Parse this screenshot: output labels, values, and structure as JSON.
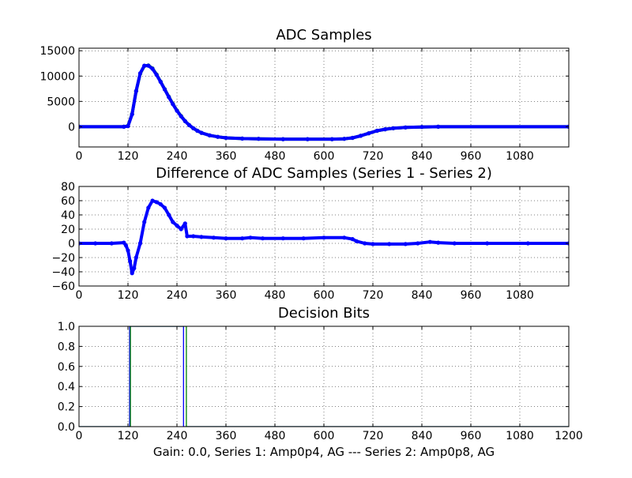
{
  "chart_data": [
    {
      "type": "line",
      "title": "ADC Samples",
      "xlabel": "",
      "ylabel": "",
      "xlim": [
        0,
        1200
      ],
      "ylim": [
        -4000,
        15500
      ],
      "xticks": [
        0,
        120,
        240,
        360,
        480,
        600,
        720,
        840,
        960,
        1080
      ],
      "yticks": [
        0,
        5000,
        10000,
        15000
      ],
      "grid": true,
      "series": [
        {
          "color": "#008000",
          "marker": "dot",
          "points": [
            [
              0,
              0
            ],
            [
              110,
              0
            ],
            [
              120,
              150
            ],
            [
              130,
              2500
            ],
            [
              140,
              7000
            ],
            [
              150,
              10500
            ],
            [
              160,
              12000
            ],
            [
              170,
              12100
            ],
            [
              180,
              11500
            ],
            [
              190,
              10300
            ],
            [
              200,
              8900
            ],
            [
              210,
              7400
            ],
            [
              220,
              5900
            ],
            [
              230,
              4500
            ],
            [
              240,
              3200
            ],
            [
              250,
              2100
            ],
            [
              260,
              1100
            ],
            [
              270,
              300
            ],
            [
              280,
              -300
            ],
            [
              290,
              -800
            ],
            [
              300,
              -1200
            ],
            [
              320,
              -1700
            ],
            [
              340,
              -2000
            ],
            [
              360,
              -2200
            ],
            [
              400,
              -2350
            ],
            [
              440,
              -2400
            ],
            [
              500,
              -2450
            ],
            [
              560,
              -2450
            ],
            [
              620,
              -2450
            ],
            [
              650,
              -2400
            ],
            [
              670,
              -2200
            ],
            [
              690,
              -1800
            ],
            [
              710,
              -1300
            ],
            [
              730,
              -800
            ],
            [
              750,
              -500
            ],
            [
              770,
              -300
            ],
            [
              800,
              -150
            ],
            [
              840,
              -50
            ],
            [
              880,
              0
            ],
            [
              1200,
              0
            ]
          ]
        },
        {
          "color": "#0000ff",
          "marker": "dot",
          "points": [
            [
              0,
              0
            ],
            [
              110,
              0
            ],
            [
              120,
              100
            ],
            [
              130,
              2450
            ],
            [
              140,
              7050
            ],
            [
              150,
              10550
            ],
            [
              160,
              12050
            ],
            [
              170,
              12050
            ],
            [
              180,
              11450
            ],
            [
              190,
              10250
            ],
            [
              200,
              8850
            ],
            [
              210,
              7350
            ],
            [
              220,
              5850
            ],
            [
              230,
              4450
            ],
            [
              240,
              3150
            ],
            [
              250,
              2050
            ],
            [
              260,
              1100
            ],
            [
              270,
              300
            ],
            [
              280,
              -300
            ],
            [
              290,
              -800
            ],
            [
              300,
              -1200
            ],
            [
              320,
              -1700
            ],
            [
              340,
              -2000
            ],
            [
              360,
              -2200
            ],
            [
              400,
              -2350
            ],
            [
              440,
              -2400
            ],
            [
              500,
              -2450
            ],
            [
              560,
              -2450
            ],
            [
              620,
              -2450
            ],
            [
              650,
              -2400
            ],
            [
              670,
              -2200
            ],
            [
              690,
              -1800
            ],
            [
              710,
              -1300
            ],
            [
              730,
              -800
            ],
            [
              750,
              -500
            ],
            [
              770,
              -300
            ],
            [
              800,
              -150
            ],
            [
              840,
              -50
            ],
            [
              880,
              0
            ],
            [
              1200,
              0
            ]
          ]
        }
      ]
    },
    {
      "type": "line",
      "title": "Difference of ADC Samples (Series 1 - Series 2)",
      "xlabel": "",
      "ylabel": "",
      "xlim": [
        0,
        1200
      ],
      "ylim": [
        -60,
        80
      ],
      "xticks": [
        0,
        120,
        240,
        360,
        480,
        600,
        720,
        840,
        960,
        1080
      ],
      "yticks": [
        -60,
        -40,
        -20,
        0,
        20,
        40,
        60,
        80
      ],
      "grid": true,
      "series": [
        {
          "color": "#0000ff",
          "marker": "dot",
          "points": [
            [
              0,
              0
            ],
            [
              40,
              0
            ],
            [
              80,
              0
            ],
            [
              110,
              1
            ],
            [
              115,
              -3
            ],
            [
              120,
              -10
            ],
            [
              125,
              -25
            ],
            [
              130,
              -42
            ],
            [
              135,
              -35
            ],
            [
              140,
              -20
            ],
            [
              150,
              0
            ],
            [
              160,
              30
            ],
            [
              170,
              50
            ],
            [
              180,
              60
            ],
            [
              190,
              58
            ],
            [
              200,
              55
            ],
            [
              210,
              50
            ],
            [
              220,
              40
            ],
            [
              230,
              30
            ],
            [
              240,
              25
            ],
            [
              250,
              20
            ],
            [
              260,
              28
            ],
            [
              265,
              10
            ],
            [
              280,
              10
            ],
            [
              300,
              9
            ],
            [
              330,
              8
            ],
            [
              360,
              7
            ],
            [
              400,
              7
            ],
            [
              420,
              8
            ],
            [
              450,
              7
            ],
            [
              500,
              7
            ],
            [
              550,
              7
            ],
            [
              600,
              8
            ],
            [
              650,
              8
            ],
            [
              670,
              6
            ],
            [
              680,
              3
            ],
            [
              700,
              0
            ],
            [
              720,
              -1
            ],
            [
              760,
              -1
            ],
            [
              800,
              -1
            ],
            [
              830,
              0
            ],
            [
              860,
              2
            ],
            [
              880,
              1
            ],
            [
              920,
              0
            ],
            [
              1000,
              0
            ],
            [
              1100,
              0
            ],
            [
              1200,
              0
            ]
          ]
        }
      ]
    },
    {
      "type": "line",
      "title": "Decision Bits",
      "xlabel": "Gain: 0.0, Series 1: Amp0p4, AG --- Series 2: Amp0p8, AG",
      "ylabel": "",
      "xlim": [
        0,
        1200
      ],
      "ylim": [
        0,
        1
      ],
      "xticks": [
        0,
        120,
        240,
        360,
        480,
        600,
        720,
        840,
        960,
        1080,
        1200
      ],
      "xtick_labels": [
        "0",
        "120",
        "240",
        "360",
        "480",
        "600",
        "720",
        "840",
        "960",
        "1080",
        "1200"
      ],
      "yticks": [
        0.0,
        0.2,
        0.4,
        0.6,
        0.8,
        1.0
      ],
      "ytick_labels": [
        "0.0",
        "0.2",
        "0.4",
        "0.6",
        "0.8",
        "1.0"
      ],
      "grid": true,
      "series": [
        {
          "color": "#0000ff",
          "marker": "none",
          "points": [
            [
              0,
              0
            ],
            [
              124,
              0
            ],
            [
              124,
              1
            ],
            [
              256,
              1
            ],
            [
              256,
              0
            ],
            [
              1200,
              0
            ]
          ]
        },
        {
          "color": "#008000",
          "marker": "none",
          "points": [
            [
              0,
              0
            ],
            [
              126,
              0
            ],
            [
              126,
              1
            ],
            [
              263,
              1
            ],
            [
              263,
              0
            ],
            [
              1200,
              0
            ]
          ]
        }
      ]
    }
  ]
}
